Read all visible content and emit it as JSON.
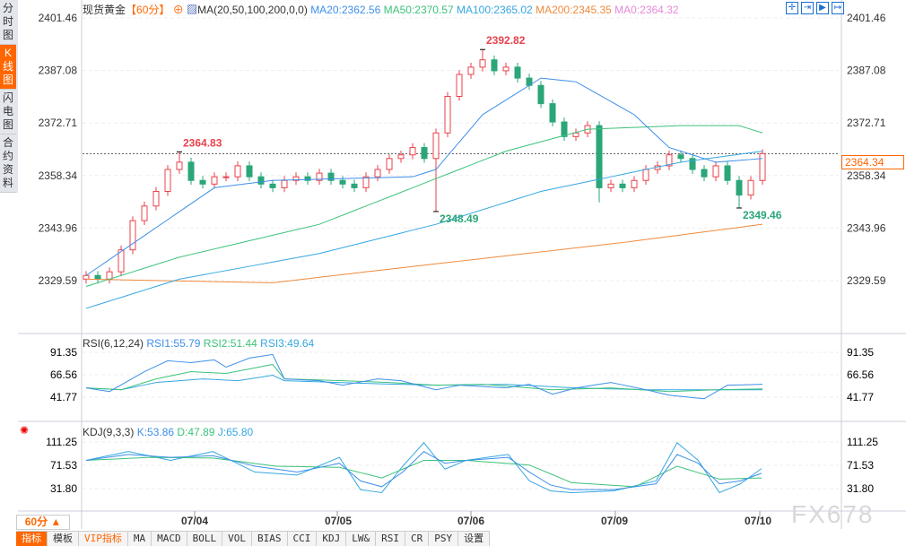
{
  "sidebar": {
    "items": [
      {
        "label": "分时图"
      },
      {
        "label": "K线图",
        "active": true
      },
      {
        "label": "闪电图"
      },
      {
        "label": "合约资料"
      }
    ]
  },
  "header": {
    "symbol": "现货黄金",
    "period": "【60分】",
    "ma_label": "MA(20,50,100,200,0,0)",
    "ma20": "MA20:2362.56",
    "ma50": "MA50:2370.57",
    "ma100": "MA100:2365.02",
    "ma200": "MA200:2345.35",
    "ma0": "MA0:2364.32",
    "tools": [
      "crosshair-icon",
      "zoom-in-icon",
      "zoom-out-icon",
      "scroll-end-icon"
    ]
  },
  "colors": {
    "up": "#e8424b",
    "down": "#2aa678",
    "ma20": "#3d8fe8",
    "ma50": "#3cc27a",
    "ma100": "#36a7e0",
    "ma200": "#f08a3c",
    "ma0": "#e58ad8",
    "accent": "#ff6600"
  },
  "price_axis": {
    "labels": [
      "2401.46",
      "2387.08",
      "2372.71",
      "2358.34",
      "2343.96",
      "2329.59"
    ],
    "current": "2364.34"
  },
  "annotations": {
    "high1": "2364.83",
    "low1": "2348.49",
    "high2": "2392.82",
    "low2": "2349.46"
  },
  "chart_data": {
    "type": "candlestick",
    "closes": [
      2331,
      2330,
      2332,
      2338,
      2346,
      2350,
      2354,
      2360,
      2362,
      2357,
      2356,
      2358,
      2358,
      2361,
      2358,
      2356,
      2355,
      2357,
      2358,
      2357,
      2359,
      2357,
      2356,
      2355,
      2358,
      2360,
      2363,
      2364,
      2366,
      2363,
      2370,
      2380,
      2386,
      2388,
      2390,
      2387,
      2388,
      2385,
      2383,
      2378,
      2373,
      2369,
      2370,
      2372,
      2355,
      2356,
      2355,
      2357,
      2360,
      2361,
      2364,
      2363,
      2360,
      2358,
      2361,
      2357,
      2353,
      2357,
      2364.34
    ],
    "ylim": [
      2329.59,
      2401.46
    ],
    "ma20": [
      [
        0,
        2331
      ],
      [
        11,
        2355
      ],
      [
        16,
        2357
      ],
      [
        28,
        2358
      ],
      [
        30,
        2360
      ],
      [
        34,
        2375
      ],
      [
        39,
        2385
      ],
      [
        42,
        2384
      ],
      [
        47,
        2375
      ],
      [
        50,
        2366
      ],
      [
        54,
        2362
      ],
      [
        58,
        2363
      ]
    ],
    "ma50": [
      [
        0,
        2328
      ],
      [
        8,
        2336
      ],
      [
        20,
        2345
      ],
      [
        28,
        2355
      ],
      [
        36,
        2365
      ],
      [
        43,
        2371
      ],
      [
        51,
        2372
      ],
      [
        56,
        2372
      ],
      [
        58,
        2370
      ]
    ],
    "ma100": [
      [
        0,
        2322
      ],
      [
        8,
        2330
      ],
      [
        20,
        2337
      ],
      [
        30,
        2345
      ],
      [
        39,
        2354
      ],
      [
        45,
        2358
      ],
      [
        51,
        2362
      ],
      [
        58,
        2365
      ]
    ],
    "ma200": [
      [
        0,
        2330
      ],
      [
        16,
        2329
      ],
      [
        24,
        2332
      ],
      [
        35,
        2336
      ],
      [
        46,
        2340
      ],
      [
        58,
        2345
      ]
    ]
  },
  "rsi": {
    "label": "RSI(6,12,24)",
    "rsi1": "RSI1:55.79",
    "rsi2": "RSI2:51.44",
    "rsi3": "RSI3:49.64",
    "axis": [
      "91.35",
      "66.56",
      "41.77"
    ],
    "s1": [
      [
        0,
        52
      ],
      [
        2,
        48
      ],
      [
        5,
        70
      ],
      [
        7,
        82
      ],
      [
        9,
        80
      ],
      [
        11,
        83
      ],
      [
        12,
        75
      ],
      [
        14,
        85
      ],
      [
        16,
        89
      ],
      [
        17,
        62
      ],
      [
        20,
        60
      ],
      [
        22,
        55
      ],
      [
        25,
        62
      ],
      [
        27,
        60
      ],
      [
        30,
        50
      ],
      [
        32,
        55
      ],
      [
        36,
        52
      ],
      [
        38,
        56
      ],
      [
        40,
        45
      ],
      [
        42,
        52
      ],
      [
        45,
        58
      ],
      [
        48,
        50
      ],
      [
        50,
        44
      ],
      [
        53,
        40
      ],
      [
        55,
        55
      ],
      [
        58,
        56
      ]
    ],
    "s2": [
      [
        0,
        52
      ],
      [
        3,
        50
      ],
      [
        6,
        62
      ],
      [
        9,
        70
      ],
      [
        12,
        68
      ],
      [
        16,
        78
      ],
      [
        17,
        62
      ],
      [
        22,
        60
      ],
      [
        26,
        58
      ],
      [
        30,
        55
      ],
      [
        34,
        56
      ],
      [
        40,
        50
      ],
      [
        45,
        52
      ],
      [
        50,
        48
      ],
      [
        54,
        50
      ],
      [
        58,
        51
      ]
    ],
    "s3": [
      [
        0,
        52
      ],
      [
        3,
        50
      ],
      [
        6,
        58
      ],
      [
        10,
        62
      ],
      [
        13,
        60
      ],
      [
        16,
        66
      ],
      [
        17,
        60
      ],
      [
        24,
        57
      ],
      [
        30,
        55
      ],
      [
        36,
        56
      ],
      [
        42,
        52
      ],
      [
        48,
        50
      ],
      [
        54,
        50
      ],
      [
        58,
        50
      ]
    ]
  },
  "kdj": {
    "label": "KDJ(9,3,3)",
    "k": "K:53.86",
    "d": "D:47.89",
    "j": "J:65.80",
    "axis": [
      "111.25",
      "71.53",
      "31.80"
    ],
    "sk": [
      [
        0,
        80
      ],
      [
        4,
        90
      ],
      [
        8,
        85
      ],
      [
        12,
        88
      ],
      [
        16,
        70
      ],
      [
        20,
        60
      ],
      [
        24,
        75
      ],
      [
        26,
        45
      ],
      [
        28,
        35
      ],
      [
        30,
        60
      ],
      [
        32,
        95
      ],
      [
        34,
        75
      ],
      [
        36,
        80
      ],
      [
        40,
        85
      ],
      [
        42,
        60
      ],
      [
        44,
        38
      ],
      [
        46,
        30
      ],
      [
        50,
        30
      ],
      [
        54,
        40
      ],
      [
        56,
        90
      ],
      [
        58,
        75
      ],
      [
        60,
        40
      ],
      [
        62,
        45
      ],
      [
        64,
        58
      ]
    ],
    "sd": [
      [
        0,
        80
      ],
      [
        6,
        85
      ],
      [
        12,
        84
      ],
      [
        18,
        70
      ],
      [
        24,
        68
      ],
      [
        28,
        50
      ],
      [
        32,
        80
      ],
      [
        36,
        80
      ],
      [
        42,
        72
      ],
      [
        46,
        42
      ],
      [
        52,
        35
      ],
      [
        56,
        70
      ],
      [
        60,
        48
      ],
      [
        64,
        50
      ]
    ],
    "sj": [
      [
        0,
        80
      ],
      [
        4,
        95
      ],
      [
        8,
        80
      ],
      [
        12,
        95
      ],
      [
        16,
        60
      ],
      [
        20,
        55
      ],
      [
        24,
        85
      ],
      [
        26,
        30
      ],
      [
        28,
        25
      ],
      [
        30,
        70
      ],
      [
        32,
        110
      ],
      [
        34,
        65
      ],
      [
        36,
        80
      ],
      [
        40,
        90
      ],
      [
        42,
        45
      ],
      [
        44,
        28
      ],
      [
        46,
        25
      ],
      [
        50,
        28
      ],
      [
        54,
        45
      ],
      [
        56,
        110
      ],
      [
        58,
        80
      ],
      [
        60,
        25
      ],
      [
        62,
        40
      ],
      [
        64,
        66
      ]
    ]
  },
  "dates": [
    "07/04",
    "07/05",
    "07/06",
    "07/09",
    "07/10"
  ],
  "period_select": "60分 ▲",
  "tabs": [
    "指标",
    "模板",
    "VIP指标",
    "MA",
    "MACD",
    "BOLL",
    "VOL",
    "BIAS",
    "CCI",
    "KDJ",
    "LW&",
    "RSI",
    "CR",
    "PSY",
    "设置"
  ],
  "watermark": "FX678"
}
